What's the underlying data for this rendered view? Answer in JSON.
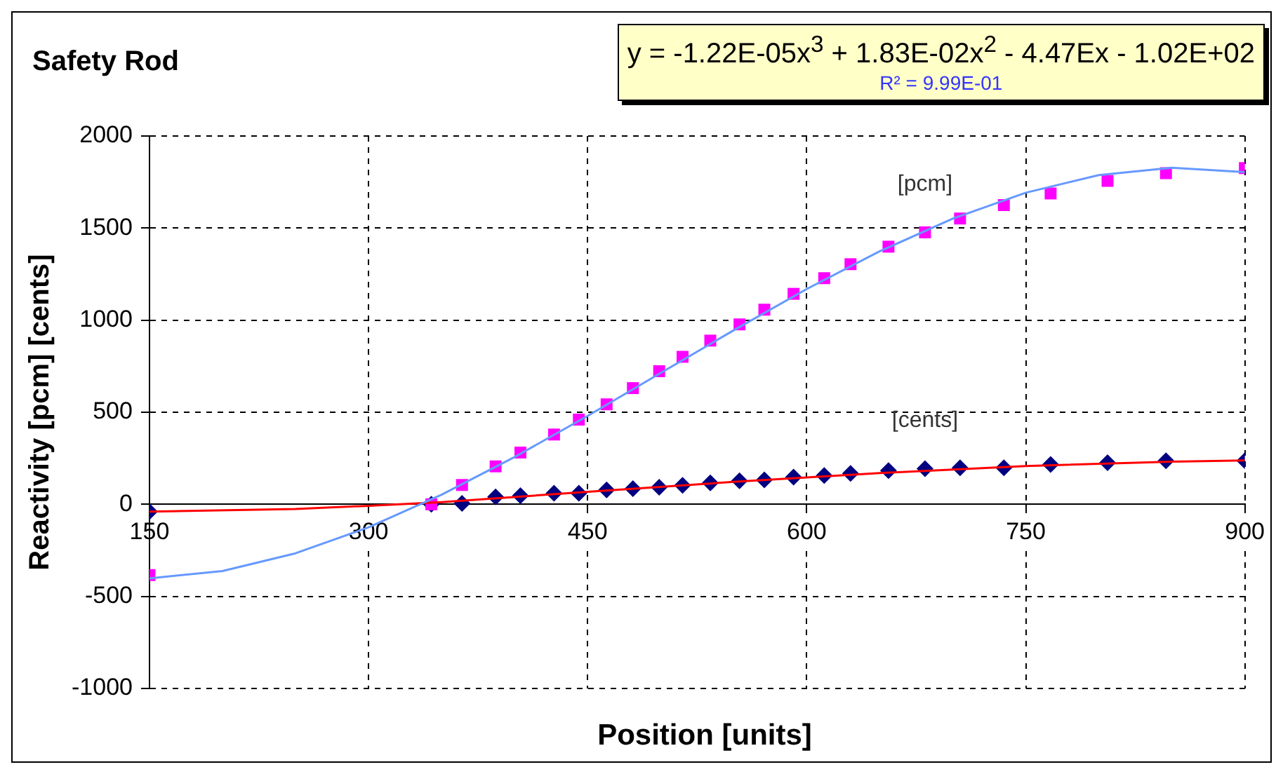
{
  "chart_data": {
    "type": "scatter",
    "title": "Safety Rod",
    "xlabel": "Position [units]",
    "ylabel": "Reactivity [pcm] [cents]",
    "xlim": [
      150,
      900
    ],
    "xticks": [
      150,
      300,
      450,
      600,
      750,
      900
    ],
    "ylim": [
      -1000,
      2000
    ],
    "yticks": [
      -1000,
      -500,
      0,
      500,
      1000,
      1500,
      2000
    ],
    "grid": true,
    "legend": false,
    "series": [
      {
        "type": "scatter",
        "name": "[pcm]",
        "color": "#ff00ff",
        "marker": "square",
        "x": [
          150,
          343,
          364,
          387,
          404,
          427,
          444,
          463,
          481,
          499,
          515,
          534,
          554,
          571,
          591,
          612,
          630,
          656,
          681,
          705,
          735,
          767,
          806,
          846,
          900
        ],
        "values": [
          -384,
          0,
          105,
          206,
          281,
          379,
          460,
          543,
          631,
          723,
          801,
          889,
          977,
          1057,
          1143,
          1228,
          1304,
          1399,
          1477,
          1552,
          1625,
          1688,
          1756,
          1798,
          1826
        ]
      },
      {
        "type": "scatter",
        "name": "[cents]",
        "color": "#000080",
        "marker": "diamond",
        "x": [
          150,
          343,
          364,
          387,
          404,
          427,
          444,
          463,
          481,
          499,
          515,
          534,
          554,
          571,
          591,
          612,
          630,
          656,
          681,
          705,
          735,
          767,
          806,
          846,
          900
        ],
        "values": [
          -40,
          0,
          5,
          40,
          47,
          60,
          60,
          78,
          85,
          93,
          103,
          116,
          128,
          133,
          148,
          156,
          168,
          183,
          194,
          198,
          198,
          216,
          226,
          236,
          236
        ]
      },
      {
        "type": "line",
        "color": "#6699ff",
        "marker": "none",
        "line_style": "solid",
        "x": [
          150,
          200,
          250,
          300,
          350,
          400,
          450,
          500,
          550,
          600,
          650,
          700,
          750,
          800,
          850,
          900
        ],
        "values": [
          -402,
          -362,
          -266,
          -125,
          52,
          257,
          480,
          713,
          945,
          1169,
          1374,
          1551,
          1692,
          1788,
          1828,
          1804
        ]
      },
      {
        "type": "line",
        "color": "#ff0000",
        "marker": "none",
        "line_style": "solid",
        "x": [
          150,
          250,
          300,
          350,
          450,
          550,
          650,
          750,
          850,
          900
        ],
        "values": [
          -40,
          -25,
          -8,
          12,
          68,
          122,
          170,
          208,
          232,
          238
        ]
      }
    ],
    "annotations": [
      "y = -1.22E-05x$^{3}$ + 1.83E-02x$^{2}$ - 4.47Ex - 1.02E+02",
      "R² = 9.99E-01"
    ]
  }
}
